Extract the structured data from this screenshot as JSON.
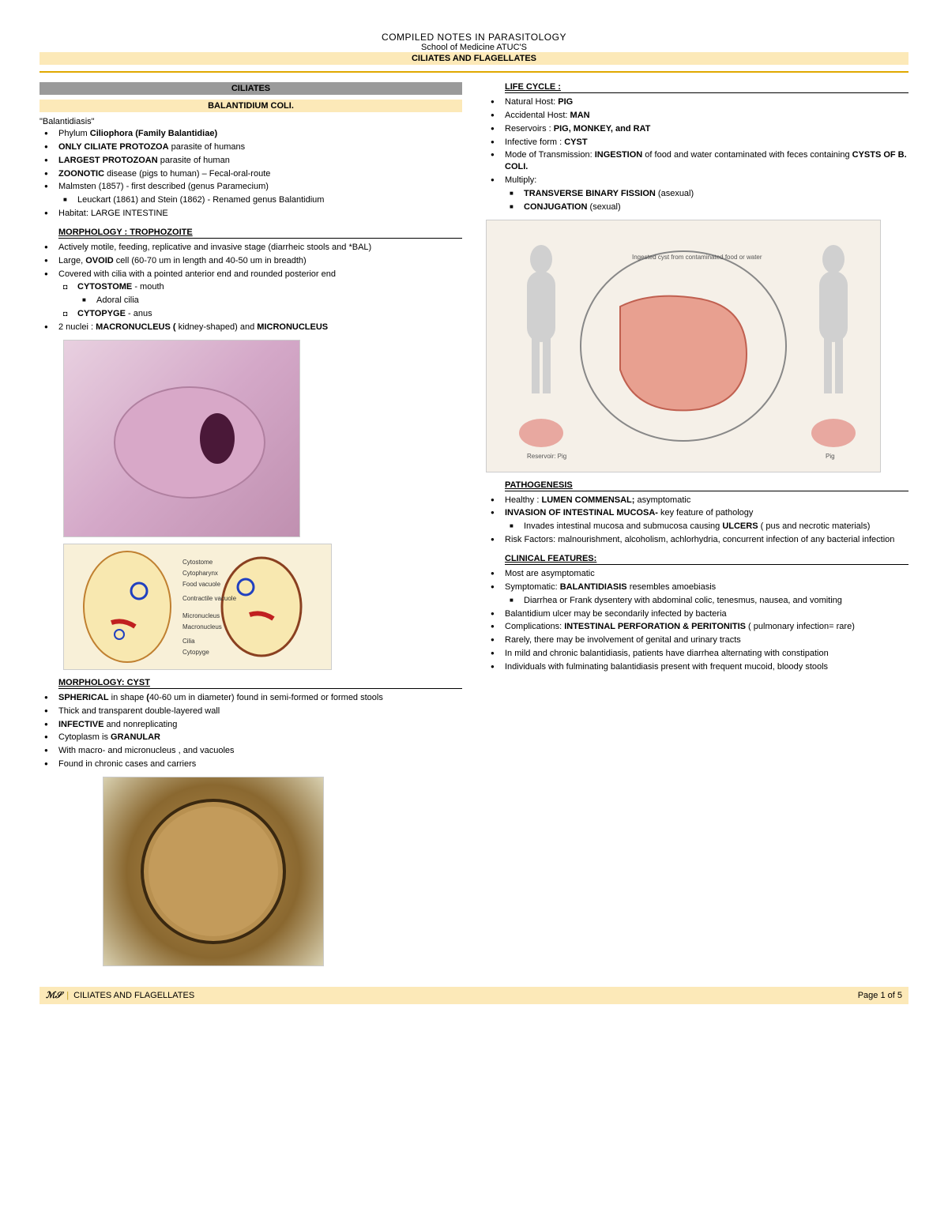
{
  "header": {
    "line1": "COMPILED NOTES IN PARASITOLOGY",
    "line2": "School of Medicine ATUC'S",
    "line3": "CILIATES AND FLAGELLATES"
  },
  "left": {
    "ciliates_bar": "CILIATES",
    "balantidium_bar": "BALANTIDIUM COLI.",
    "quote": "\"Balantidiasis\"",
    "intro": [
      "Phylum <b>Ciliophora (Family Balantidiae)</b>",
      "<b>ONLY CILIATE PROTOZOA</b>  parasite of humans",
      "<b>LARGEST PROTOZOAN</b>  parasite of human",
      "<b>ZOONOTIC</b>  disease (pigs to human) – Fecal-oral-route",
      "Malmsten (1857) - first described (genus Paramecium)"
    ],
    "intro_sub": [
      "Leuckart (1861) and Stein (1862) - Renamed genus Balantidium"
    ],
    "intro2": [
      "Habitat: LARGE INTESTINE"
    ],
    "morph_troph_head": "MORPHOLOGY :  TROPHOZOITE",
    "morph_troph": [
      "Actively  motile, feeding, replicative and invasive stage (diarrheic stools and *BAL)",
      "Large, <b>OVOID</b>  cell (60-70 um in length and 40-50 um in breadth)",
      "Covered with cilia with a pointed anterior end and rounded posterior end"
    ],
    "morph_troph_opens": [
      "<b>CYTOSTOME</b>  - mouth"
    ],
    "morph_troph_sq": [
      "Adoral cilia"
    ],
    "morph_troph_opens2": [
      "<b>CYTOPYGE</b> -  anus"
    ],
    "morph_troph2": [
      "2 nuclei : <b>MACRONUCLEUS ( </b>kidney-shaped) and <b>MICRONUCLEUS</b>"
    ],
    "morph_cyst_head": "MORPHOLOGY:  CYST",
    "morph_cyst": [
      "<b>SPHERICAL</b> in shape <b>(</b>40-60 um in diameter) found in semi-formed or formed stools",
      "Thick and transparent double-layered wall",
      "<b>INFECTIVE</b>  and nonreplicating",
      "Cytoplasm is <b>GRANULAR</b>",
      "With macro- and micronucleus , and vacuoles",
      "Found in chronic cases and carriers"
    ],
    "diagram_labels": {
      "a": "Cytostome",
      "b": "Cytopharynx",
      "c": "Food vacuole",
      "d": "Contractile vacuole",
      "e": "Micronucleus",
      "f": "Macronucleus",
      "g": "Cilia",
      "h": "Cytopyge"
    }
  },
  "right": {
    "life_head": "LIFE CYCLE :",
    "life": [
      "Natural Host:  <b>PIG</b>",
      "Accidental Host: <b>MAN</b>",
      "Reservoirs : <b>PIG, MONKEY, and RAT</b>",
      "Infective form : <b>CYST</b>",
      "Mode of Transmission: <b>INGESTION</b>  of food and water contaminated with feces containing <b>CYSTS OF B. COLI.</b>",
      "Multiply:"
    ],
    "life_sub": [
      "<b>TRANSVERSE BINARY FISSION</b> (asexual)",
      "<b>CONJUGATION</b> (sexual)"
    ],
    "path_head": "PATHOGENESIS",
    "path": [
      "Healthy : <b>LUMEN COMMENSAL;</b>  asymptomatic",
      "<b>INVASION OF INTESTINAL MUCOSA-</b>  key feature of pathology"
    ],
    "path_sub": [
      "Invades intestinal mucosa and submucosa causing <b>ULCERS</b> ( pus and necrotic materials)"
    ],
    "path2": [
      "Risk Factors: malnourishment, alcoholism, achlorhydria, concurrent infection of any bacterial infection"
    ],
    "clin_head": "CLINICAL FEATURES:",
    "clin": [
      "Most are asymptomatic",
      "Symptomatic: <b>BALANTIDIASIS</b>  resembles amoebiasis"
    ],
    "clin_sub": [
      "Diarrhea or Frank dysentery with abdominal colic, tenesmus, nausea, and vomiting"
    ],
    "clin2": [
      "Balantidium ulcer may be secondarily infected by bacteria",
      "Complications: <b>INTESTINAL PERFORATION & PERITONITIS</b> ( pulmonary infection= rare)",
      "Rarely, there may be involvement of genital and urinary tracts",
      "In mild and chronic balantidiasis, patients have diarrhea alternating with constipation",
      "Individuals with fulminating balantidiasis present with frequent mucoid, bloody stools"
    ]
  },
  "footer": {
    "left": "CILIATES AND FLAGELLATES",
    "right": "Page 1 of 5"
  },
  "colors": {
    "cream": "#fce9b8",
    "gray": "#9a9a9a",
    "gold": "#e0a800"
  }
}
